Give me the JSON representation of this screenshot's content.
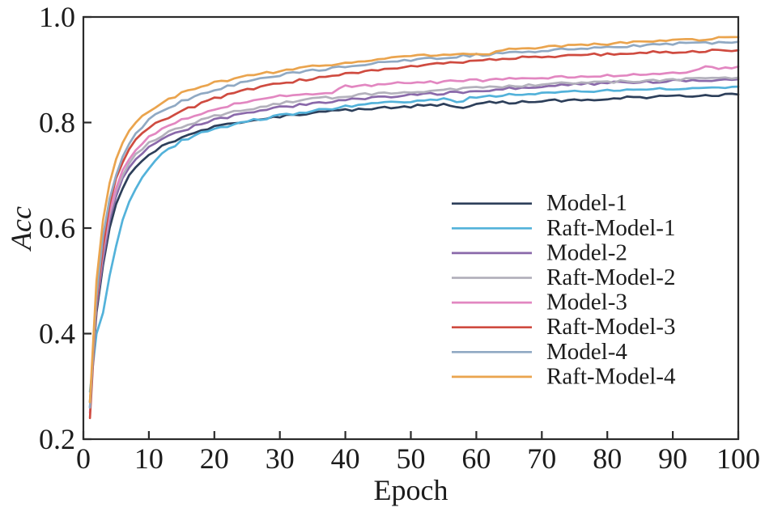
{
  "figure": {
    "background": "#ffffff",
    "axis_color": "#2b2b2b",
    "text_color": "#1c1c1c"
  },
  "chart_data": {
    "type": "line",
    "title": "",
    "xlabel": "Epoch",
    "ylabel": "Acc",
    "xlim": [
      0,
      100
    ],
    "ylim": [
      0.2,
      1.0
    ],
    "x_ticks": [
      0,
      10,
      20,
      30,
      40,
      50,
      60,
      70,
      80,
      90,
      100
    ],
    "y_ticks": [
      0.2,
      0.4,
      0.6,
      0.8,
      1.0
    ],
    "grid": false,
    "legend_position": "center-right",
    "legend_frame": false,
    "series": [
      {
        "name": "Model-1",
        "color": "#2d3f5a",
        "points": [
          [
            1,
            0.27
          ],
          [
            2,
            0.44
          ],
          [
            3,
            0.53
          ],
          [
            4,
            0.6
          ],
          [
            5,
            0.645
          ],
          [
            6,
            0.675
          ],
          [
            7,
            0.7
          ],
          [
            8,
            0.715
          ],
          [
            9,
            0.728
          ],
          [
            10,
            0.74
          ],
          [
            12,
            0.756
          ],
          [
            15,
            0.772
          ],
          [
            18,
            0.785
          ],
          [
            20,
            0.792
          ],
          [
            25,
            0.803
          ],
          [
            30,
            0.812
          ],
          [
            35,
            0.818
          ],
          [
            40,
            0.823
          ],
          [
            45,
            0.827
          ],
          [
            50,
            0.831
          ],
          [
            55,
            0.834
          ],
          [
            58,
            0.827
          ],
          [
            60,
            0.837
          ],
          [
            65,
            0.838
          ],
          [
            70,
            0.84
          ],
          [
            75,
            0.843
          ],
          [
            80,
            0.845
          ],
          [
            85,
            0.848
          ],
          [
            90,
            0.85
          ],
          [
            95,
            0.851
          ],
          [
            100,
            0.853
          ]
        ]
      },
      {
        "name": "Raft-Model-1",
        "color": "#53b2da",
        "points": [
          [
            1,
            0.29
          ],
          [
            2,
            0.4
          ],
          [
            3,
            0.44
          ],
          [
            4,
            0.51
          ],
          [
            5,
            0.565
          ],
          [
            6,
            0.615
          ],
          [
            7,
            0.65
          ],
          [
            8,
            0.675
          ],
          [
            9,
            0.695
          ],
          [
            10,
            0.712
          ],
          [
            12,
            0.74
          ],
          [
            15,
            0.765
          ],
          [
            18,
            0.78
          ],
          [
            20,
            0.788
          ],
          [
            25,
            0.802
          ],
          [
            30,
            0.813
          ],
          [
            35,
            0.822
          ],
          [
            40,
            0.83
          ],
          [
            45,
            0.836
          ],
          [
            50,
            0.841
          ],
          [
            55,
            0.845
          ],
          [
            57,
            0.839
          ],
          [
            60,
            0.849
          ],
          [
            65,
            0.852
          ],
          [
            70,
            0.855
          ],
          [
            75,
            0.858
          ],
          [
            80,
            0.86
          ],
          [
            85,
            0.862
          ],
          [
            90,
            0.864
          ],
          [
            95,
            0.866
          ],
          [
            100,
            0.868
          ]
        ]
      },
      {
        "name": "Model-2",
        "color": "#8a69aa",
        "points": [
          [
            1,
            0.26
          ],
          [
            2,
            0.45
          ],
          [
            3,
            0.54
          ],
          [
            4,
            0.615
          ],
          [
            5,
            0.66
          ],
          [
            6,
            0.695
          ],
          [
            7,
            0.715
          ],
          [
            8,
            0.73
          ],
          [
            10,
            0.752
          ],
          [
            12,
            0.768
          ],
          [
            15,
            0.785
          ],
          [
            20,
            0.805
          ],
          [
            25,
            0.818
          ],
          [
            30,
            0.828
          ],
          [
            35,
            0.836
          ],
          [
            40,
            0.843
          ],
          [
            45,
            0.848
          ],
          [
            50,
            0.852
          ],
          [
            55,
            0.855
          ],
          [
            60,
            0.86
          ],
          [
            65,
            0.864
          ],
          [
            70,
            0.868
          ],
          [
            75,
            0.872
          ],
          [
            80,
            0.875
          ],
          [
            85,
            0.877
          ],
          [
            90,
            0.879
          ],
          [
            95,
            0.881
          ],
          [
            100,
            0.882
          ]
        ]
      },
      {
        "name": "Raft-Model-2",
        "color": "#b3b1bc",
        "points": [
          [
            1,
            0.27
          ],
          [
            2,
            0.46
          ],
          [
            3,
            0.555
          ],
          [
            4,
            0.625
          ],
          [
            5,
            0.67
          ],
          [
            6,
            0.7
          ],
          [
            7,
            0.722
          ],
          [
            8,
            0.74
          ],
          [
            10,
            0.762
          ],
          [
            12,
            0.776
          ],
          [
            15,
            0.792
          ],
          [
            20,
            0.812
          ],
          [
            25,
            0.825
          ],
          [
            30,
            0.836
          ],
          [
            35,
            0.844
          ],
          [
            40,
            0.85
          ],
          [
            45,
            0.855
          ],
          [
            50,
            0.858
          ],
          [
            55,
            0.862
          ],
          [
            60,
            0.866
          ],
          [
            65,
            0.869
          ],
          [
            70,
            0.872
          ],
          [
            75,
            0.875
          ],
          [
            80,
            0.877
          ],
          [
            85,
            0.879
          ],
          [
            90,
            0.881
          ],
          [
            95,
            0.883
          ],
          [
            100,
            0.885
          ]
        ]
      },
      {
        "name": "Model-3",
        "color": "#e287c1",
        "points": [
          [
            1,
            0.25
          ],
          [
            2,
            0.46
          ],
          [
            3,
            0.56
          ],
          [
            4,
            0.63
          ],
          [
            5,
            0.675
          ],
          [
            6,
            0.71
          ],
          [
            7,
            0.73
          ],
          [
            8,
            0.748
          ],
          [
            10,
            0.772
          ],
          [
            12,
            0.788
          ],
          [
            15,
            0.805
          ],
          [
            18,
            0.818
          ],
          [
            20,
            0.825
          ],
          [
            25,
            0.84
          ],
          [
            30,
            0.85
          ],
          [
            35,
            0.855
          ],
          [
            38,
            0.856
          ],
          [
            40,
            0.868
          ],
          [
            45,
            0.872
          ],
          [
            50,
            0.875
          ],
          [
            55,
            0.877
          ],
          [
            60,
            0.88
          ],
          [
            65,
            0.882
          ],
          [
            70,
            0.885
          ],
          [
            75,
            0.887
          ],
          [
            80,
            0.889
          ],
          [
            85,
            0.891
          ],
          [
            90,
            0.893
          ],
          [
            93,
            0.897
          ],
          [
            95,
            0.908
          ],
          [
            97,
            0.902
          ],
          [
            100,
            0.906
          ]
        ]
      },
      {
        "name": "Raft-Model-3",
        "color": "#cf4b40",
        "points": [
          [
            1,
            0.24
          ],
          [
            2,
            0.46
          ],
          [
            3,
            0.565
          ],
          [
            4,
            0.645
          ],
          [
            5,
            0.695
          ],
          [
            6,
            0.725
          ],
          [
            7,
            0.75
          ],
          [
            8,
            0.768
          ],
          [
            10,
            0.79
          ],
          [
            12,
            0.805
          ],
          [
            15,
            0.822
          ],
          [
            20,
            0.845
          ],
          [
            25,
            0.862
          ],
          [
            30,
            0.874
          ],
          [
            35,
            0.884
          ],
          [
            40,
            0.892
          ],
          [
            45,
            0.9
          ],
          [
            50,
            0.906
          ],
          [
            55,
            0.912
          ],
          [
            60,
            0.917
          ],
          [
            65,
            0.921
          ],
          [
            70,
            0.925
          ],
          [
            75,
            0.928
          ],
          [
            80,
            0.93
          ],
          [
            85,
            0.932
          ],
          [
            90,
            0.934
          ],
          [
            95,
            0.936
          ],
          [
            100,
            0.937
          ]
        ]
      },
      {
        "name": "Model-4",
        "color": "#90a9c3",
        "points": [
          [
            1,
            0.26
          ],
          [
            2,
            0.47
          ],
          [
            3,
            0.585
          ],
          [
            4,
            0.655
          ],
          [
            5,
            0.7
          ],
          [
            6,
            0.735
          ],
          [
            7,
            0.76
          ],
          [
            8,
            0.78
          ],
          [
            10,
            0.805
          ],
          [
            12,
            0.822
          ],
          [
            15,
            0.84
          ],
          [
            20,
            0.862
          ],
          [
            25,
            0.878
          ],
          [
            30,
            0.89
          ],
          [
            35,
            0.899
          ],
          [
            40,
            0.906
          ],
          [
            45,
            0.913
          ],
          [
            50,
            0.918
          ],
          [
            55,
            0.923
          ],
          [
            60,
            0.928
          ],
          [
            65,
            0.932
          ],
          [
            70,
            0.936
          ],
          [
            75,
            0.94
          ],
          [
            80,
            0.943
          ],
          [
            85,
            0.946
          ],
          [
            90,
            0.949
          ],
          [
            95,
            0.951
          ],
          [
            100,
            0.953
          ]
        ]
      },
      {
        "name": "Raft-Model-4",
        "color": "#eaa44e",
        "points": [
          [
            1,
            0.27
          ],
          [
            2,
            0.5
          ],
          [
            3,
            0.615
          ],
          [
            4,
            0.685
          ],
          [
            5,
            0.73
          ],
          [
            6,
            0.762
          ],
          [
            7,
            0.785
          ],
          [
            8,
            0.8
          ],
          [
            10,
            0.822
          ],
          [
            12,
            0.838
          ],
          [
            15,
            0.855
          ],
          [
            20,
            0.875
          ],
          [
            25,
            0.888
          ],
          [
            30,
            0.898
          ],
          [
            35,
            0.906
          ],
          [
            40,
            0.913
          ],
          [
            45,
            0.919
          ],
          [
            50,
            0.925
          ],
          [
            55,
            0.93
          ],
          [
            62,
            0.931
          ],
          [
            65,
            0.938
          ],
          [
            70,
            0.942
          ],
          [
            75,
            0.946
          ],
          [
            80,
            0.949
          ],
          [
            85,
            0.952
          ],
          [
            90,
            0.955
          ],
          [
            95,
            0.958
          ],
          [
            100,
            0.962
          ]
        ]
      }
    ]
  }
}
